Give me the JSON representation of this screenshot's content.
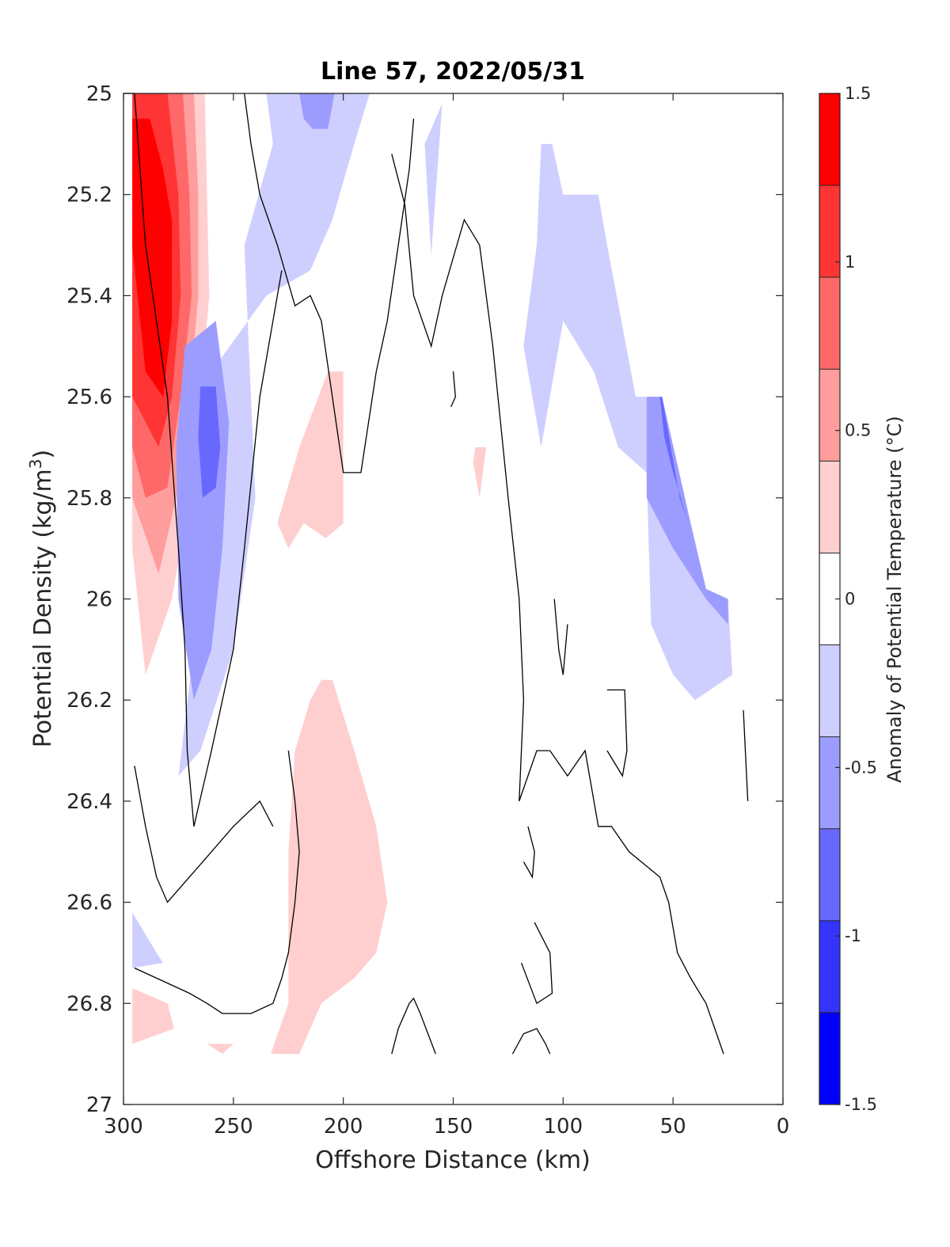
{
  "chart_data": {
    "type": "contour",
    "title": "Line 57, 2022/05/31",
    "xlabel": "Offshore Distance (km)",
    "ylabel_base": "Potential Density (kg/m",
    "ylabel_sup": "3",
    "ylabel_end": ")",
    "xlim": [
      300,
      0
    ],
    "ylim": [
      25,
      27
    ],
    "x_reversed": true,
    "y_reversed": true,
    "xticks": [
      300,
      250,
      200,
      150,
      100,
      50,
      0
    ],
    "xtick_labels": [
      "300",
      "250",
      "200",
      "150",
      "100",
      "50",
      "0"
    ],
    "yticks": [
      25,
      25.2,
      25.4,
      25.6,
      25.8,
      26,
      26.2,
      26.4,
      26.6,
      26.8,
      27
    ],
    "ytick_labels": [
      "25",
      "25.2",
      "25.4",
      "25.6",
      "25.8",
      "26",
      "26.2",
      "26.4",
      "26.6",
      "26.8",
      "27"
    ],
    "colorbar": {
      "label": "Anomaly of Potential Temperature (°C)",
      "range": [
        -1.5,
        1.5
      ],
      "ticks": [
        1.5,
        1,
        0.5,
        0,
        -0.5,
        -1,
        -1.5
      ],
      "tick_labels": [
        "1.5",
        "1",
        "0.5",
        "0",
        "-0.5",
        "-1",
        "-1.5"
      ],
      "levels": [
        -1.5,
        -1.25,
        -1,
        -0.75,
        -0.5,
        -0.25,
        0.25,
        0.5,
        0.75,
        1,
        1.25,
        1.5
      ],
      "colors": [
        "#0000ff",
        "#3434ff",
        "#6868ff",
        "#9c9cff",
        "#cfcfff",
        "#ffffff",
        "#ffcfcf",
        "#ff9c9c",
        "#ff6868",
        "#ff3434",
        "#ff0000"
      ]
    },
    "filled_regions": [
      {
        "level": 0.25,
        "color": "#ffcfcf",
        "points": [
          [
            296,
            25
          ],
          [
            263,
            25
          ],
          [
            262,
            25.2
          ],
          [
            261,
            25.4
          ],
          [
            265,
            25.6
          ],
          [
            270,
            25.8
          ],
          [
            278,
            26
          ],
          [
            290,
            26.15
          ],
          [
            296,
            25.9
          ]
        ]
      },
      {
        "level": 0.5,
        "color": "#ff9c9c",
        "points": [
          [
            296,
            25
          ],
          [
            268,
            25
          ],
          [
            266,
            25.2
          ],
          [
            266,
            25.4
          ],
          [
            270,
            25.6
          ],
          [
            276,
            25.8
          ],
          [
            284,
            25.95
          ],
          [
            296,
            25.8
          ]
        ]
      },
      {
        "level": 0.75,
        "color": "#ff6868",
        "points": [
          [
            296,
            25
          ],
          [
            273,
            25
          ],
          [
            270,
            25.2
          ],
          [
            269,
            25.4
          ],
          [
            274,
            25.6
          ],
          [
            280,
            25.78
          ],
          [
            290,
            25.8
          ],
          [
            296,
            25.7
          ]
        ]
      },
      {
        "level": 1.0,
        "color": "#ff3434",
        "points": [
          [
            296,
            25
          ],
          [
            280,
            25
          ],
          [
            275,
            25.2
          ],
          [
            274,
            25.4
          ],
          [
            278,
            25.6
          ],
          [
            284,
            25.7
          ],
          [
            296,
            25.6
          ]
        ]
      },
      {
        "level": 1.25,
        "color": "#ff0000",
        "points": [
          [
            296,
            25.05
          ],
          [
            288,
            25.05
          ],
          [
            282,
            25.15
          ],
          [
            278,
            25.25
          ],
          [
            278,
            25.45
          ],
          [
            282,
            25.6
          ],
          [
            290,
            25.55
          ],
          [
            296,
            25.3
          ]
        ]
      },
      {
        "level": -0.25,
        "color": "#cfcfff",
        "points": [
          [
            235,
            25
          ],
          [
            188,
            25
          ],
          [
            195,
            25.1
          ],
          [
            205,
            25.25
          ],
          [
            215,
            25.35
          ],
          [
            235,
            25.4
          ],
          [
            260,
            25.55
          ],
          [
            268,
            25.8
          ],
          [
            268,
            26.1
          ],
          [
            275,
            26.35
          ],
          [
            265,
            26.3
          ],
          [
            250,
            26.1
          ],
          [
            240,
            25.8
          ],
          [
            245,
            25.3
          ],
          [
            232,
            25.1
          ]
        ]
      },
      {
        "level": -0.5,
        "color": "#9c9cff",
        "points": [
          [
            272,
            25.5
          ],
          [
            258,
            25.45
          ],
          [
            252,
            25.65
          ],
          [
            255,
            25.9
          ],
          [
            260,
            26.1
          ],
          [
            268,
            26.2
          ],
          [
            275,
            26.0
          ],
          [
            276,
            25.7
          ]
        ]
      },
      {
        "level": -0.75,
        "color": "#6868ff",
        "points": [
          [
            265,
            25.58
          ],
          [
            258,
            25.58
          ],
          [
            256,
            25.7
          ],
          [
            258,
            25.78
          ],
          [
            264,
            25.8
          ],
          [
            266,
            25.68
          ]
        ]
      },
      {
        "level": -0.5,
        "color": "#9c9cff",
        "points": [
          [
            220,
            25
          ],
          [
            204,
            25
          ],
          [
            207,
            25.07
          ],
          [
            214,
            25.07
          ],
          [
            218,
            25.05
          ]
        ]
      },
      {
        "level": -0.25,
        "color": "#cfcfff",
        "points": [
          [
            155,
            25.02
          ],
          [
            160,
            25.32
          ],
          [
            163,
            25.1
          ]
        ]
      },
      {
        "level": -0.25,
        "color": "#cfcfff",
        "points": [
          [
            110,
            25.1
          ],
          [
            105,
            25.1
          ],
          [
            100,
            25.2
          ],
          [
            84,
            25.2
          ],
          [
            80,
            25.3
          ],
          [
            67,
            25.6
          ],
          [
            55,
            25.6
          ],
          [
            44,
            25.85
          ],
          [
            35,
            26
          ],
          [
            25,
            26.0
          ],
          [
            23,
            26.15
          ],
          [
            40,
            26.2
          ],
          [
            50,
            26.15
          ],
          [
            60,
            26.05
          ],
          [
            62,
            25.75
          ],
          [
            75,
            25.7
          ],
          [
            86,
            25.55
          ],
          [
            100,
            25.45
          ],
          [
            110,
            25.7
          ],
          [
            118,
            25.5
          ],
          [
            112,
            25.3
          ]
        ]
      },
      {
        "level": -0.5,
        "color": "#9c9cff",
        "points": [
          [
            62,
            25.6
          ],
          [
            55,
            25.6
          ],
          [
            42,
            25.85
          ],
          [
            35,
            25.98
          ],
          [
            25,
            26.0
          ],
          [
            25,
            26.05
          ],
          [
            35,
            26.0
          ],
          [
            50,
            25.9
          ],
          [
            62,
            25.8
          ]
        ]
      },
      {
        "level": -0.75,
        "color": "#6868ff",
        "points": [
          [
            56,
            25.6
          ],
          [
            55,
            25.6
          ],
          [
            47,
            25.8
          ],
          [
            43,
            25.85
          ],
          [
            50,
            25.75
          ],
          [
            54,
            25.68
          ]
        ]
      },
      {
        "level": -0.25,
        "color": "#cfcfff",
        "points": [
          [
            296,
            26.62
          ],
          [
            285,
            26.7
          ],
          [
            282,
            26.72
          ],
          [
            296,
            26.73
          ]
        ]
      },
      {
        "level": 0.25,
        "color": "#ffcfcf",
        "points": [
          [
            200,
            25.55
          ],
          [
            207,
            25.55
          ],
          [
            220,
            25.7
          ],
          [
            230,
            25.85
          ],
          [
            225,
            25.9
          ],
          [
            218,
            25.85
          ],
          [
            208,
            25.88
          ],
          [
            200,
            25.85
          ]
        ]
      },
      {
        "level": 0.25,
        "color": "#ffcfcf",
        "points": [
          [
            210,
            26.16
          ],
          [
            205,
            26.16
          ],
          [
            195,
            26.3
          ],
          [
            185,
            26.45
          ],
          [
            180,
            26.6
          ],
          [
            185,
            26.7
          ],
          [
            195,
            26.75
          ],
          [
            210,
            26.8
          ],
          [
            220,
            26.9
          ],
          [
            233,
            26.9
          ],
          [
            225,
            26.8
          ],
          [
            225,
            26.5
          ],
          [
            222,
            26.3
          ],
          [
            215,
            26.2
          ]
        ]
      },
      {
        "level": 0.25,
        "color": "#ffcfcf",
        "points": [
          [
            140,
            25.7
          ],
          [
            135,
            25.7
          ],
          [
            138,
            25.8
          ],
          [
            141,
            25.73
          ]
        ]
      },
      {
        "level": 0.25,
        "color": "#ffcfcf",
        "points": [
          [
            296,
            26.77
          ],
          [
            280,
            26.8
          ],
          [
            277,
            26.85
          ],
          [
            296,
            26.88
          ]
        ]
      },
      {
        "level": 0.25,
        "color": "#ffcfcf",
        "points": [
          [
            262,
            26.88
          ],
          [
            250,
            26.88
          ],
          [
            255,
            26.9
          ]
        ]
      }
    ],
    "contour_lines_level": 0,
    "contour_lines": [
      [
        [
          300,
          25
        ],
        [
          295,
          25
        ],
        [
          290,
          25.3
        ],
        [
          280,
          25.6
        ],
        [
          275,
          25.9
        ],
        [
          272,
          26.1
        ],
        [
          271,
          26.3
        ],
        [
          268,
          26.45
        ],
        [
          260,
          26.3
        ],
        [
          250,
          26.1
        ],
        [
          245,
          25.9
        ],
        [
          238,
          25.6
        ],
        [
          232,
          25.45
        ],
        [
          228,
          25.35
        ]
      ],
      [
        [
          245,
          25
        ],
        [
          242,
          25.1
        ],
        [
          238,
          25.2
        ],
        [
          230,
          25.3
        ],
        [
          222,
          25.42
        ],
        [
          215,
          25.4
        ],
        [
          210,
          25.45
        ],
        [
          205,
          25.6
        ],
        [
          200,
          25.75
        ],
        [
          192,
          25.75
        ],
        [
          185,
          25.55
        ],
        [
          180,
          25.45
        ],
        [
          175,
          25.3
        ],
        [
          170,
          25.15
        ],
        [
          168,
          25.05
        ]
      ],
      [
        [
          178,
          25.12
        ],
        [
          172,
          25.22
        ],
        [
          168,
          25.4
        ],
        [
          160,
          25.5
        ],
        [
          155,
          25.4
        ],
        [
          145,
          25.25
        ],
        [
          138,
          25.3
        ],
        [
          132,
          25.5
        ],
        [
          125,
          25.8
        ],
        [
          120,
          26
        ],
        [
          118,
          26.2
        ],
        [
          120,
          26.4
        ],
        [
          112,
          26.3
        ],
        [
          106,
          26.3
        ],
        [
          98,
          26.35
        ],
        [
          90,
          26.3
        ],
        [
          84,
          26.45
        ],
        [
          78,
          26.45
        ],
        [
          70,
          26.5
        ],
        [
          56,
          26.55
        ],
        [
          52,
          26.6
        ],
        [
          48,
          26.7
        ],
        [
          42,
          26.75
        ],
        [
          35,
          26.8
        ],
        [
          27,
          26.9
        ]
      ],
      [
        [
          150,
          25.55
        ],
        [
          149,
          25.6
        ],
        [
          151,
          25.62
        ]
      ],
      [
        [
          104,
          26.0
        ],
        [
          102,
          26.1
        ],
        [
          100,
          26.15
        ],
        [
          98,
          26.05
        ]
      ],
      [
        [
          80,
          26.18
        ],
        [
          72,
          26.18
        ],
        [
          71,
          26.3
        ],
        [
          73,
          26.35
        ],
        [
          80,
          26.3
        ]
      ],
      [
        [
          18,
          26.22
        ],
        [
          16,
          26.4
        ]
      ],
      [
        [
          116,
          26.45
        ],
        [
          113,
          26.5
        ],
        [
          114,
          26.55
        ],
        [
          118,
          26.52
        ]
      ],
      [
        [
          113,
          26.64
        ],
        [
          106,
          26.7
        ],
        [
          105,
          26.78
        ],
        [
          112,
          26.8
        ],
        [
          119,
          26.72
        ]
      ],
      [
        [
          123,
          26.9
        ],
        [
          118,
          26.86
        ],
        [
          112,
          26.85
        ],
        [
          108,
          26.88
        ],
        [
          106,
          26.9
        ]
      ],
      [
        [
          178,
          26.9
        ],
        [
          175,
          26.85
        ],
        [
          170,
          26.8
        ],
        [
          168,
          26.79
        ],
        [
          165,
          26.82
        ],
        [
          158,
          26.9
        ]
      ],
      [
        [
          295,
          26.33
        ],
        [
          290,
          26.45
        ],
        [
          285,
          26.55
        ],
        [
          280,
          26.6
        ],
        [
          270,
          26.55
        ],
        [
          260,
          26.5
        ],
        [
          250,
          26.45
        ],
        [
          238,
          26.4
        ],
        [
          232,
          26.45
        ]
      ],
      [
        [
          295,
          26.73
        ],
        [
          285,
          26.75
        ],
        [
          270,
          26.78
        ],
        [
          262,
          26.8
        ],
        [
          255,
          26.82
        ],
        [
          242,
          26.82
        ],
        [
          232,
          26.8
        ],
        [
          228,
          26.75
        ],
        [
          225,
          26.7
        ],
        [
          222,
          26.6
        ],
        [
          220,
          26.5
        ],
        [
          222,
          26.4
        ],
        [
          225,
          26.3
        ]
      ]
    ]
  }
}
